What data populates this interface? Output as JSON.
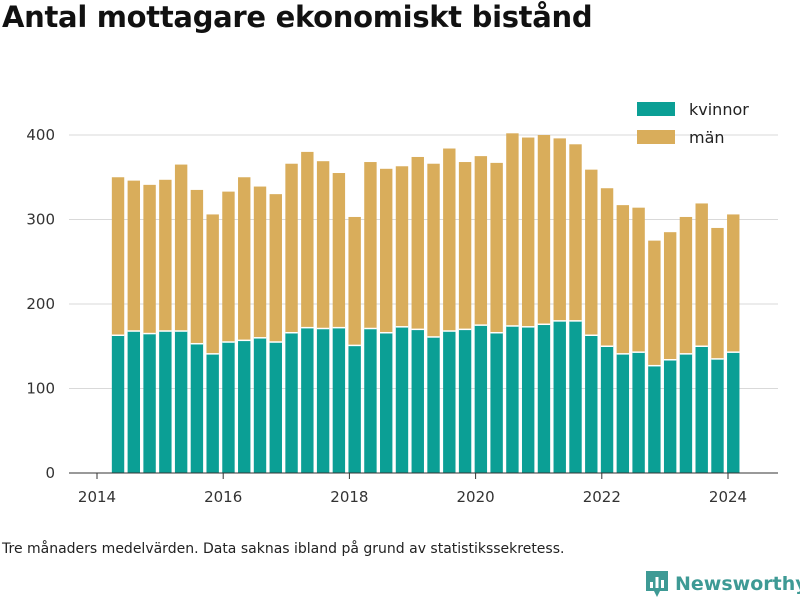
{
  "chart_data": {
    "type": "bar",
    "stacked": true,
    "title": "Antal mottagare ekonomiskt bistånd",
    "note": "Tre månaders medelvärden. Data saknas ibland på grund av statistikssekretess.",
    "x_dates": [
      "2014-05",
      "2014-08",
      "2014-11",
      "2015-02",
      "2015-05",
      "2015-08",
      "2015-11",
      "2016-02",
      "2016-05",
      "2016-08",
      "2016-11",
      "2017-02",
      "2017-05",
      "2017-08",
      "2017-11",
      "2018-02",
      "2018-05",
      "2018-08",
      "2018-11",
      "2019-02",
      "2019-05",
      "2019-08",
      "2019-11",
      "2020-02",
      "2020-05",
      "2020-08",
      "2020-11",
      "2021-02",
      "2021-05",
      "2021-08",
      "2021-11",
      "2022-02",
      "2022-05",
      "2022-08",
      "2022-11",
      "2023-02",
      "2023-05",
      "2023-08",
      "2023-11",
      "2024-02"
    ],
    "series": [
      {
        "name": "kvinnor",
        "color": "#0b9f95",
        "values": [
          163,
          168,
          165,
          168,
          168,
          153,
          141,
          155,
          157,
          160,
          155,
          166,
          172,
          171,
          172,
          151,
          171,
          166,
          173,
          170,
          161,
          168,
          170,
          175,
          166,
          174,
          173,
          176,
          180,
          180,
          163,
          150,
          141,
          143,
          127,
          134,
          141,
          150,
          135,
          143
        ]
      },
      {
        "name": "män",
        "color": "#d9ad5b",
        "values": [
          187,
          178,
          176,
          179,
          197,
          182,
          165,
          178,
          193,
          179,
          175,
          200,
          208,
          198,
          183,
          152,
          197,
          194,
          190,
          204,
          205,
          216,
          198,
          200,
          201,
          228,
          224,
          224,
          216,
          209,
          196,
          187,
          176,
          171,
          148,
          151,
          162,
          169,
          155,
          163
        ]
      }
    ],
    "xticks": [
      "2014",
      "2016",
      "2018",
      "2020",
      "2022",
      "2024"
    ],
    "yticks": [
      0,
      100,
      200,
      300,
      400
    ],
    "ylim": [
      0,
      420
    ],
    "grid": true,
    "legend_position": "top-right"
  },
  "brand": {
    "name": "Newsworthy",
    "icon": "bar-chart-logo-icon",
    "color": "#3e9a95"
  }
}
